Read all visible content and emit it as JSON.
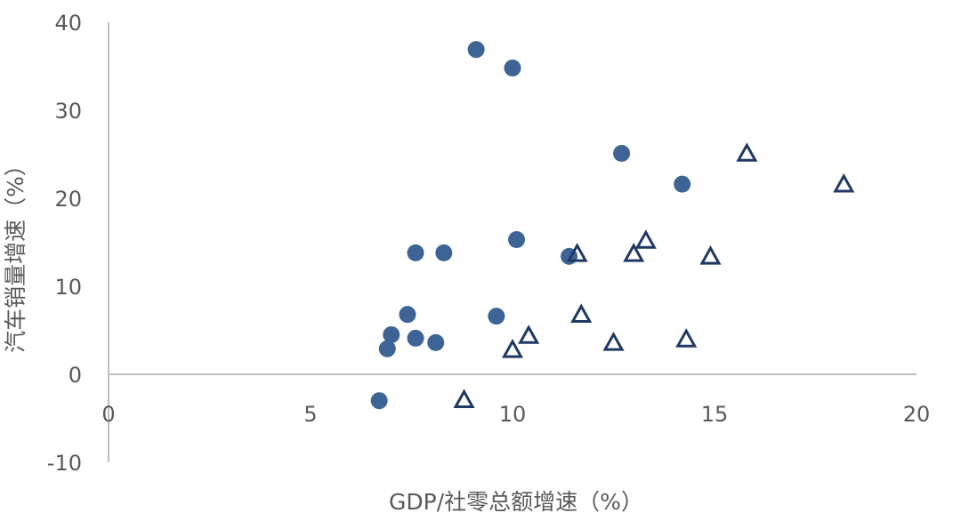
{
  "chart_data": {
    "type": "scatter",
    "title": "",
    "xlabel": "GDP/社零总额增速（%）",
    "ylabel": "汽车销量增速（%）",
    "xlim": [
      0,
      20
    ],
    "ylim": [
      -10,
      40
    ],
    "xticks": [
      0,
      5,
      10,
      15,
      20
    ],
    "yticks": [
      -10,
      0,
      10,
      20,
      30,
      40
    ],
    "grid": false,
    "legend": "none",
    "series": [
      {
        "marker": "circle",
        "color": "#3d6495",
        "points": [
          {
            "x": 6.7,
            "y": -3.0
          },
          {
            "x": 6.9,
            "y": 2.9
          },
          {
            "x": 7.0,
            "y": 4.5
          },
          {
            "x": 7.4,
            "y": 6.8
          },
          {
            "x": 7.6,
            "y": 4.1
          },
          {
            "x": 7.6,
            "y": 13.8
          },
          {
            "x": 8.1,
            "y": 3.6
          },
          {
            "x": 8.3,
            "y": 13.8
          },
          {
            "x": 9.1,
            "y": 36.9
          },
          {
            "x": 9.6,
            "y": 6.6
          },
          {
            "x": 10.0,
            "y": 34.8
          },
          {
            "x": 10.1,
            "y": 15.3
          },
          {
            "x": 11.4,
            "y": 13.4
          },
          {
            "x": 12.7,
            "y": 25.1
          },
          {
            "x": 14.2,
            "y": 21.6
          }
        ]
      },
      {
        "marker": "triangle",
        "color": "#203864",
        "points": [
          {
            "x": 8.8,
            "y": -3.0
          },
          {
            "x": 10.0,
            "y": 2.7
          },
          {
            "x": 10.4,
            "y": 4.3
          },
          {
            "x": 11.6,
            "y": 13.6
          },
          {
            "x": 11.7,
            "y": 6.7
          },
          {
            "x": 12.5,
            "y": 3.5
          },
          {
            "x": 13.0,
            "y": 13.6
          },
          {
            "x": 13.3,
            "y": 15.1
          },
          {
            "x": 14.3,
            "y": 3.9
          },
          {
            "x": 14.9,
            "y": 13.3
          },
          {
            "x": 15.8,
            "y": 25.0
          },
          {
            "x": 18.2,
            "y": 21.5
          }
        ]
      }
    ]
  }
}
